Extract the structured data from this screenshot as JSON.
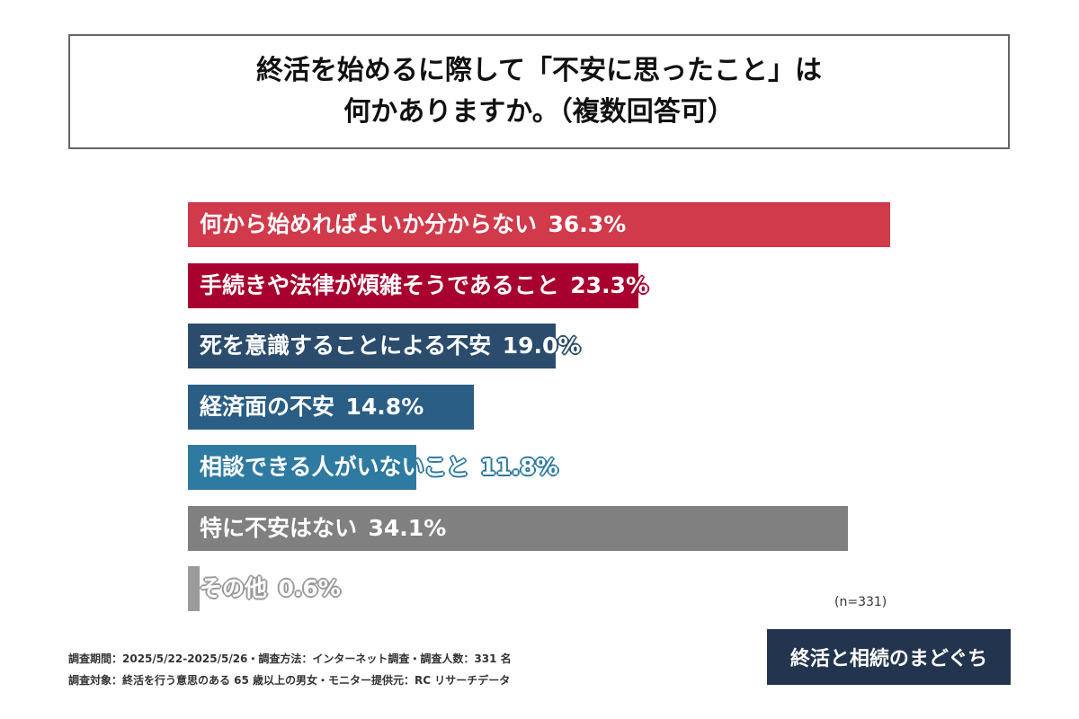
{
  "chart_data": {
    "type": "bar",
    "orientation": "horizontal",
    "title_lines": [
      "終活を始めるに際して「不安に思ったこと」は",
      "何かありますか。（複数回答可）"
    ],
    "categories": [
      "何から始めればよいか分からない",
      "手続きや法律が煩雑そうであること",
      "死を意識することによる不安",
      "経済面の不安",
      "相談できる人がいないこと",
      "特に不安はない",
      "その他"
    ],
    "values": [
      36.3,
      23.3,
      19.0,
      14.8,
      11.8,
      34.1,
      0.6
    ],
    "value_labels": [
      "36.3%",
      "23.3%",
      "19.0%",
      "14.8%",
      "11.8%",
      "34.1%",
      "0.6%"
    ],
    "colors": [
      "#d03a4b",
      "#a8002f",
      "#2b4c6d",
      "#2a5e84",
      "#2f7aa0",
      "#808080",
      "#9a9a9a"
    ],
    "grid": false,
    "sample_size": "(n=331)"
  },
  "footer": {
    "line1": "調査期間：2025/5/22-2025/5/26・調査方法：インターネット調査・調査人数：331 名",
    "line2": "調査対象：終活を行う意思のある 65 歳以上の男女・モニター提供元：RC リサーチデータ"
  },
  "logo": {
    "text": "終活と相続のまどぐち"
  }
}
